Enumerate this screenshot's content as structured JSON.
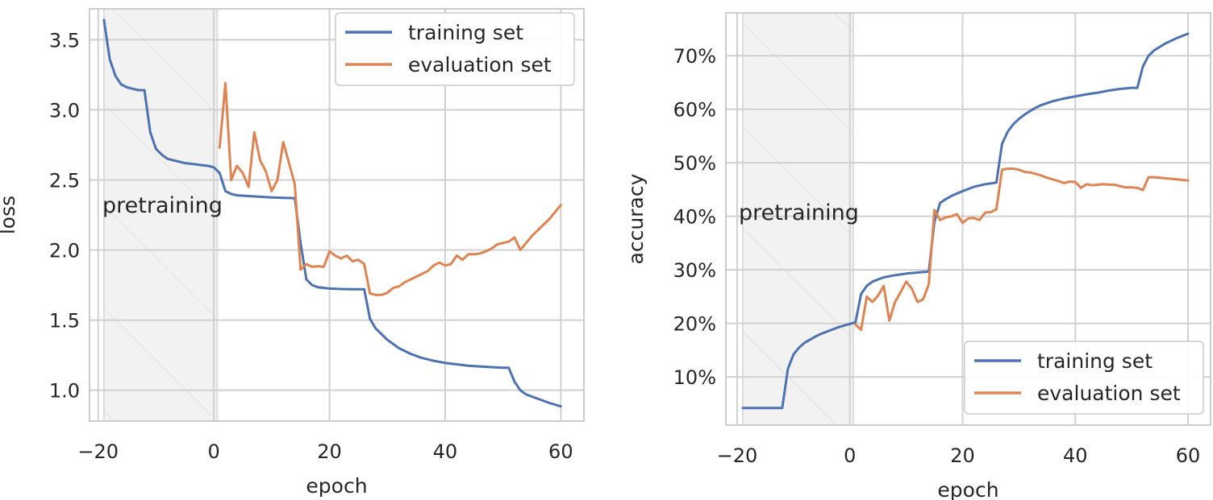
{
  "colors": {
    "training": "#4c72b0",
    "evaluation": "#dd8452",
    "grid": "#d0d0d0",
    "frame": "#cccccc",
    "shade": "#f2f2f2"
  },
  "chart_data": [
    {
      "type": "line",
      "xlabel": "epoch",
      "ylabel": "loss",
      "xlim": [
        -21.5,
        64
      ],
      "ylim": [
        0.78,
        3.72
      ],
      "xticks": [
        -20,
        0,
        20,
        40,
        60
      ],
      "xtick_labels": [
        "−20",
        "0",
        "20",
        "40",
        "60"
      ],
      "yticks": [
        1.0,
        1.5,
        2.0,
        2.5,
        3.0,
        3.5
      ],
      "ytick_labels": [
        "1.0",
        "1.5",
        "2.0",
        "2.5",
        "3.0",
        "3.5"
      ],
      "grid": true,
      "legend_position": "top-right",
      "shaded_region": {
        "x": [
          -19,
          0.6
        ],
        "label": "pretraining"
      },
      "series": [
        {
          "name": "training set",
          "x": [
            -19,
            -18,
            -17,
            -16,
            -15,
            -14,
            -13,
            -12,
            -11,
            -10,
            -9,
            -8,
            -7,
            -6,
            -5,
            -4,
            -3,
            -2,
            -1,
            0,
            1,
            2,
            3,
            4,
            6,
            8,
            10,
            12,
            14,
            15,
            16,
            17,
            18,
            20,
            22,
            24,
            26,
            27,
            28,
            29,
            30,
            31,
            32,
            33,
            34,
            35,
            36,
            38,
            40,
            42,
            44,
            46,
            48,
            50,
            51,
            52,
            53,
            54,
            56,
            58,
            60
          ],
          "values": [
            3.64,
            3.36,
            3.24,
            3.18,
            3.16,
            3.15,
            3.14,
            3.14,
            2.84,
            2.72,
            2.68,
            2.65,
            2.64,
            2.63,
            2.62,
            2.615,
            2.61,
            2.605,
            2.6,
            2.59,
            2.55,
            2.42,
            2.4,
            2.39,
            2.385,
            2.38,
            2.375,
            2.372,
            2.37,
            2.05,
            1.79,
            1.75,
            1.735,
            1.725,
            1.722,
            1.72,
            1.72,
            1.51,
            1.44,
            1.4,
            1.36,
            1.33,
            1.3,
            1.28,
            1.26,
            1.245,
            1.23,
            1.21,
            1.195,
            1.185,
            1.175,
            1.17,
            1.165,
            1.16,
            1.16,
            1.06,
            1.0,
            0.97,
            0.94,
            0.91,
            0.885
          ]
        },
        {
          "name": "evaluation set",
          "x": [
            1,
            2,
            3,
            4,
            5,
            6,
            7,
            8,
            9,
            10,
            11,
            12,
            13,
            14,
            15,
            16,
            17,
            18,
            19,
            20,
            21,
            22,
            23,
            24,
            25,
            26,
            27,
            28,
            29,
            30,
            31,
            32,
            33,
            34,
            35,
            36,
            37,
            38,
            39,
            40,
            41,
            42,
            43,
            44,
            45,
            46,
            47,
            48,
            49,
            50,
            51,
            52,
            53,
            54,
            55,
            56,
            57,
            58,
            59,
            60
          ],
          "values": [
            2.73,
            3.19,
            2.5,
            2.6,
            2.55,
            2.45,
            2.84,
            2.64,
            2.56,
            2.42,
            2.5,
            2.77,
            2.62,
            2.47,
            1.86,
            1.9,
            1.88,
            1.885,
            1.88,
            1.99,
            1.96,
            1.94,
            1.96,
            1.92,
            1.93,
            1.9,
            1.69,
            1.68,
            1.68,
            1.695,
            1.73,
            1.74,
            1.77,
            1.79,
            1.81,
            1.83,
            1.85,
            1.89,
            1.91,
            1.89,
            1.9,
            1.96,
            1.93,
            1.97,
            1.97,
            1.975,
            1.99,
            2.01,
            2.04,
            2.05,
            2.06,
            2.09,
            2.0,
            2.05,
            2.1,
            2.14,
            2.18,
            2.22,
            2.27,
            2.32
          ]
        }
      ]
    },
    {
      "type": "line",
      "xlabel": "epoch",
      "ylabel": "accuracy",
      "xlim": [
        -22,
        64
      ],
      "ylim": [
        1,
        78
      ],
      "xticks": [
        -20,
        0,
        20,
        40,
        60
      ],
      "xtick_labels": [
        "−20",
        "0",
        "20",
        "40",
        "60"
      ],
      "yticks": [
        10,
        20,
        30,
        40,
        50,
        60,
        70
      ],
      "ytick_labels": [
        "10%",
        "20%",
        "30%",
        "40%",
        "50%",
        "60%",
        "70%"
      ],
      "grid": true,
      "legend_position": "bottom-right",
      "shaded_region": {
        "x": [
          -19,
          0.6
        ],
        "label": "pretraining"
      },
      "series": [
        {
          "name": "training set",
          "x": [
            -19,
            -18,
            -17,
            -16,
            -15,
            -14,
            -13,
            -12,
            -11,
            -10,
            -9,
            -8,
            -7,
            -6,
            -5,
            -4,
            -3,
            -2,
            -1,
            0,
            1,
            2,
            3,
            4,
            5,
            6,
            8,
            10,
            12,
            14,
            15,
            16,
            17,
            18,
            20,
            22,
            24,
            26,
            27,
            28,
            29,
            30,
            31,
            32,
            33,
            34,
            36,
            38,
            40,
            42,
            44,
            46,
            48,
            50,
            51,
            52,
            53,
            54,
            56,
            58,
            60
          ],
          "values": [
            4.2,
            4.2,
            4.2,
            4.2,
            4.2,
            4.2,
            4.2,
            4.2,
            11.5,
            14.2,
            15.5,
            16.4,
            17.0,
            17.6,
            18.1,
            18.5,
            18.9,
            19.3,
            19.6,
            19.9,
            20.2,
            25.5,
            27.0,
            27.8,
            28.2,
            28.6,
            29.0,
            29.3,
            29.5,
            29.7,
            39.0,
            42.5,
            43.2,
            43.8,
            44.7,
            45.5,
            46.0,
            46.3,
            53.5,
            55.8,
            57.2,
            58.2,
            59.0,
            59.7,
            60.3,
            60.8,
            61.5,
            62.0,
            62.4,
            62.8,
            63.1,
            63.5,
            63.8,
            64.0,
            64.0,
            68.0,
            70.0,
            71.0,
            72.3,
            73.3,
            74.1
          ]
        },
        {
          "name": "evaluation set",
          "x": [
            1,
            2,
            3,
            4,
            5,
            6,
            7,
            8,
            9,
            10,
            11,
            12,
            13,
            14,
            15,
            16,
            17,
            18,
            19,
            20,
            21,
            22,
            23,
            24,
            25,
            26,
            27,
            28,
            29,
            30,
            31,
            32,
            33,
            34,
            35,
            36,
            37,
            38,
            39,
            40,
            41,
            42,
            43,
            44,
            45,
            46,
            47,
            48,
            49,
            50,
            51,
            52,
            53,
            54,
            55,
            56,
            57,
            58,
            59,
            60
          ],
          "values": [
            19.8,
            18.8,
            25.0,
            24.0,
            25.2,
            27.0,
            20.5,
            24.0,
            25.8,
            27.8,
            26.5,
            24.0,
            24.5,
            27.3,
            41.2,
            39.3,
            39.8,
            40.0,
            40.4,
            38.8,
            39.6,
            39.7,
            39.3,
            40.7,
            40.8,
            41.3,
            48.7,
            48.9,
            48.9,
            48.7,
            48.3,
            48.2,
            47.9,
            47.6,
            47.2,
            46.9,
            46.6,
            46.2,
            46.5,
            46.4,
            45.3,
            46.0,
            45.8,
            45.9,
            46.0,
            45.9,
            45.9,
            45.6,
            45.4,
            45.4,
            45.3,
            44.9,
            47.3,
            47.3,
            47.2,
            47.1,
            47.0,
            46.9,
            46.8,
            46.7
          ]
        }
      ]
    }
  ]
}
